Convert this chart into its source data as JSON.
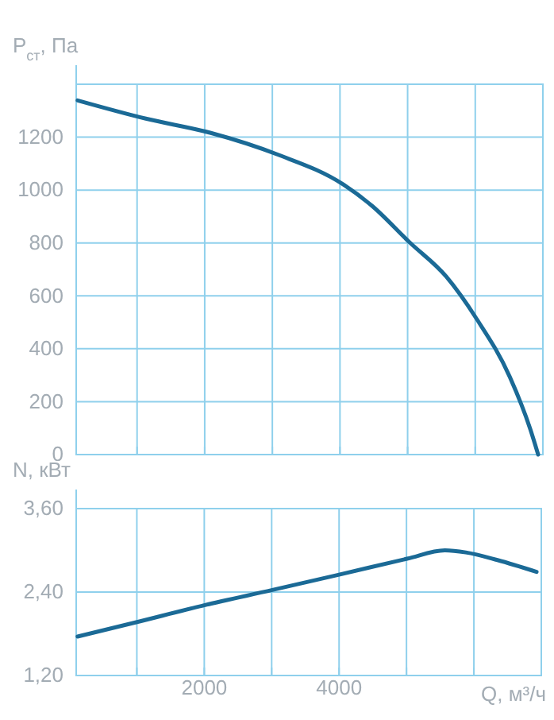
{
  "chart_data": [
    {
      "type": "line",
      "ylabel": "P$_{ст}$, Па",
      "xlim": [
        100,
        7000
      ],
      "xticks": [
        {
          "value": 1000,
          "label": null
        },
        {
          "value": 2000,
          "label": null
        },
        {
          "value": 3000,
          "label": null
        },
        {
          "value": 4000,
          "label": null
        },
        {
          "value": 5000,
          "label": null
        },
        {
          "value": 6000,
          "label": null
        }
      ],
      "ylim": [
        0,
        1400
      ],
      "yticks": [
        0,
        200,
        400,
        600,
        800,
        1000,
        1200,
        {
          "value": 1400,
          "label": null
        }
      ],
      "tick_labels": "y",
      "grid": true,
      "series": [
        {
          "color": "#1b6a96",
          "x": [
            120,
            1130,
            2090,
            3080,
            4050,
            4470,
            5030,
            5570,
            6020,
            6510,
            6815,
            6930
          ],
          "values": [
            1339,
            1270,
            1216,
            1134,
            1021,
            941,
            802,
            673,
            513,
            294,
            95,
            0
          ]
        }
      ]
    },
    {
      "type": "line",
      "ylabel": "N, кВт",
      "xlabel": "Q, м³/ч",
      "xlim": [
        100,
        7000
      ],
      "xticks": [
        {
          "value": 1000,
          "label": null
        },
        2000,
        {
          "value": 3000,
          "label": null
        },
        4000,
        {
          "value": 5000,
          "label": null
        },
        {
          "value": 6000,
          "label": null
        }
      ],
      "ylim": [
        1.2,
        3.6
      ],
      "yticks": [
        {
          "value": 1.2,
          "label": "1,20"
        },
        {
          "value": 2.4,
          "label": "2,40"
        },
        {
          "value": 3.6,
          "label": "3,60"
        }
      ],
      "grid": true,
      "series": [
        {
          "color": "#1b6a96",
          "x": [
            120,
            966,
            2000,
            3010,
            4000,
            5010,
            5570,
            5880,
            6350,
            6930
          ],
          "values": [
            1.76,
            1.96,
            2.21,
            2.43,
            2.65,
            2.88,
            3.0,
            2.97,
            2.86,
            2.69
          ]
        }
      ]
    }
  ]
}
